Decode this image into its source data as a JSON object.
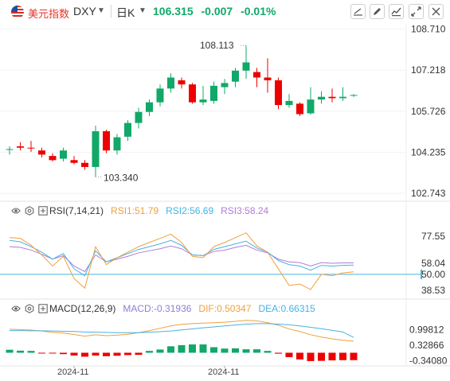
{
  "header": {
    "symbol_name": "美元指数",
    "symbol_code": "DXY",
    "period": "日K",
    "last_price": "106.315",
    "change": "-0.007",
    "change_pct": "-0.01%",
    "up_color": "#11a869",
    "down_color": "#ee0000",
    "toolbar_icons": [
      "draw-line-icon",
      "pen-icon",
      "indicator-icon",
      "fullscreen-icon",
      "close-icon"
    ]
  },
  "chart_data": [
    {
      "type": "candlestick",
      "name": "DXY daily",
      "y_ticks": [
        "108.710",
        "107.218",
        "105.726",
        "104.235",
        "102.743"
      ],
      "ylim": [
        102.6,
        108.9
      ],
      "annotations": [
        {
          "text": "108.113",
          "value": 108.113,
          "bar": 22
        },
        {
          "text": "103.340",
          "value": 103.34,
          "bar": 8
        }
      ],
      "candles": [
        {
          "o": 104.32,
          "h": 104.45,
          "l": 104.15,
          "c": 104.35
        },
        {
          "o": 104.45,
          "h": 104.6,
          "l": 104.3,
          "c": 104.4
        },
        {
          "o": 104.4,
          "h": 104.65,
          "l": 104.25,
          "c": 104.38
        },
        {
          "o": 104.3,
          "h": 104.4,
          "l": 104.05,
          "c": 104.15
        },
        {
          "o": 104.1,
          "h": 104.2,
          "l": 103.9,
          "c": 103.95
        },
        {
          "o": 104.0,
          "h": 104.4,
          "l": 103.9,
          "c": 104.3
        },
        {
          "o": 103.95,
          "h": 104.1,
          "l": 103.8,
          "c": 103.85
        },
        {
          "o": 103.85,
          "h": 103.95,
          "l": 103.6,
          "c": 103.7
        },
        {
          "o": 103.7,
          "h": 105.2,
          "l": 103.34,
          "c": 105.0
        },
        {
          "o": 105.0,
          "h": 105.05,
          "l": 104.2,
          "c": 104.3
        },
        {
          "o": 104.3,
          "h": 104.9,
          "l": 104.15,
          "c": 104.78
        },
        {
          "o": 104.8,
          "h": 105.4,
          "l": 104.65,
          "c": 105.3
        },
        {
          "o": 105.3,
          "h": 105.85,
          "l": 105.1,
          "c": 105.7
        },
        {
          "o": 105.7,
          "h": 106.15,
          "l": 105.55,
          "c": 106.05
        },
        {
          "o": 106.05,
          "h": 106.7,
          "l": 105.9,
          "c": 106.55
        },
        {
          "o": 106.55,
          "h": 107.1,
          "l": 106.4,
          "c": 106.95
        },
        {
          "o": 106.85,
          "h": 106.95,
          "l": 106.55,
          "c": 106.7
        },
        {
          "o": 106.7,
          "h": 106.75,
          "l": 106.0,
          "c": 106.05
        },
        {
          "o": 106.05,
          "h": 106.65,
          "l": 105.95,
          "c": 106.15
        },
        {
          "o": 106.1,
          "h": 106.8,
          "l": 106.0,
          "c": 106.65
        },
        {
          "o": 106.6,
          "h": 106.9,
          "l": 106.35,
          "c": 106.75
        },
        {
          "o": 106.8,
          "h": 107.3,
          "l": 106.6,
          "c": 107.2
        },
        {
          "o": 107.2,
          "h": 108.113,
          "l": 106.9,
          "c": 107.5
        },
        {
          "o": 107.15,
          "h": 107.3,
          "l": 106.6,
          "c": 106.95
        },
        {
          "o": 106.95,
          "h": 107.65,
          "l": 106.4,
          "c": 106.85
        },
        {
          "o": 106.85,
          "h": 106.95,
          "l": 105.8,
          "c": 105.95
        },
        {
          "o": 105.95,
          "h": 106.35,
          "l": 105.85,
          "c": 106.1
        },
        {
          "o": 106.0,
          "h": 106.05,
          "l": 105.55,
          "c": 105.62
        },
        {
          "o": 105.65,
          "h": 106.6,
          "l": 105.6,
          "c": 106.15
        },
        {
          "o": 106.15,
          "h": 106.45,
          "l": 106.0,
          "c": 106.25
        },
        {
          "o": 106.25,
          "h": 106.55,
          "l": 106.05,
          "c": 106.2
        },
        {
          "o": 106.2,
          "h": 106.6,
          "l": 106.1,
          "c": 106.25
        },
        {
          "o": 106.3,
          "h": 106.35,
          "l": 106.25,
          "c": 106.315
        }
      ]
    },
    {
      "type": "line",
      "name": "RSI",
      "label": "RSI(7,14,21)",
      "y_ticks": [
        "77.55",
        "58.04",
        "50.00",
        "38.53"
      ],
      "ylim": [
        35,
        85
      ],
      "reference_line": 50,
      "series": [
        {
          "name": "RSI1",
          "display": "RSI1:51.79",
          "color": "#f0a03c",
          "values": [
            76.5,
            76.0,
            71.0,
            64.0,
            56.0,
            63.0,
            47.0,
            40.0,
            70.0,
            57.0,
            62.0,
            66.0,
            70.0,
            73.0,
            76.0,
            79.0,
            73.0,
            63.0,
            62.0,
            70.0,
            73.0,
            76.5,
            80.0,
            70.5,
            66.0,
            54.0,
            42.0,
            43.0,
            39.0,
            50.0,
            49.0,
            51.0,
            51.79
          ]
        },
        {
          "name": "RSI2",
          "display": "RSI2:56.69",
          "color": "#45b3e3",
          "values": [
            74.5,
            73.5,
            70.0,
            66.0,
            61.0,
            65.0,
            54.0,
            49.0,
            67.0,
            59.0,
            62.0,
            65.0,
            68.0,
            70.0,
            72.0,
            74.5,
            71.0,
            64.0,
            63.5,
            68.0,
            70.0,
            72.0,
            74.0,
            69.0,
            66.0,
            60.0,
            57.0,
            56.0,
            53.0,
            56.5,
            56.0,
            56.5,
            56.69
          ]
        },
        {
          "name": "RSI3",
          "display": "RSI3:58.24",
          "color": "#b07cd9",
          "values": [
            70.0,
            69.5,
            67.5,
            64.5,
            61.0,
            63.5,
            56.0,
            52.0,
            64.0,
            59.0,
            61.0,
            63.0,
            65.5,
            67.0,
            68.5,
            70.5,
            68.5,
            64.0,
            63.5,
            66.5,
            67.5,
            69.5,
            71.0,
            67.5,
            65.5,
            61.0,
            59.0,
            58.5,
            56.0,
            58.5,
            58.0,
            58.3,
            58.24
          ]
        }
      ]
    },
    {
      "type": "bar+line",
      "name": "MACD",
      "label": "MACD(12,26,9)",
      "y_ticks": [
        "0.99812",
        "0.32866",
        "-0.34080"
      ],
      "ylim": [
        -0.5,
        1.6
      ],
      "series": [
        {
          "name": "MACD",
          "display": "MACD:-0.31936",
          "color": "#8d7fd7",
          "kind": "histogram",
          "values": [
            0.13,
            0.09,
            0.08,
            -0.02,
            -0.03,
            -0.06,
            -0.12,
            -0.17,
            -0.12,
            -0.15,
            -0.13,
            -0.1,
            -0.09,
            0.08,
            0.14,
            0.28,
            0.33,
            0.36,
            0.36,
            0.24,
            0.18,
            0.19,
            0.15,
            0.15,
            0.08,
            -0.04,
            -0.19,
            -0.29,
            -0.36,
            -0.35,
            -0.33,
            -0.32,
            -0.31936
          ]
        },
        {
          "name": "DIF",
          "display": "DIF:0.50347",
          "color": "#f0a03c",
          "kind": "line",
          "values": [
            1.02,
            1.0,
            0.98,
            0.94,
            0.88,
            0.85,
            0.79,
            0.72,
            0.78,
            0.74,
            0.76,
            0.8,
            0.87,
            0.96,
            1.06,
            1.16,
            1.23,
            1.26,
            1.28,
            1.3,
            1.32,
            1.36,
            1.4,
            1.38,
            1.3,
            1.19,
            1.03,
            0.92,
            0.78,
            0.68,
            0.6,
            0.54,
            0.50347
          ]
        },
        {
          "name": "DEA",
          "display": "DEA:0.66315",
          "color": "#45b3e3",
          "kind": "line",
          "values": [
            0.96,
            0.96,
            0.95,
            0.95,
            0.94,
            0.93,
            0.92,
            0.9,
            0.89,
            0.88,
            0.87,
            0.87,
            0.87,
            0.89,
            0.91,
            0.94,
            0.99,
            1.03,
            1.08,
            1.12,
            1.16,
            1.2,
            1.24,
            1.26,
            1.26,
            1.24,
            1.21,
            1.16,
            1.1,
            1.04,
            0.97,
            0.9,
            0.66315
          ]
        }
      ]
    }
  ],
  "x_ticks": [
    {
      "label": "2024-11",
      "bar": 6
    },
    {
      "label": "2024-11",
      "bar": 20
    }
  ]
}
